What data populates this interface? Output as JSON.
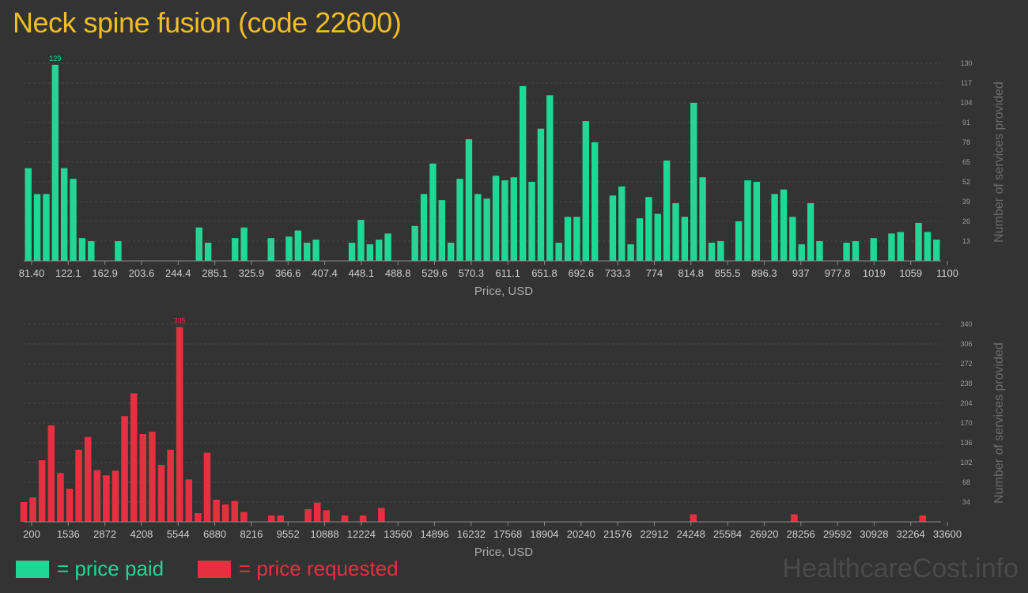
{
  "page": {
    "title": "Neck spine fusion (code 22600)",
    "watermark": "HealthcareCost.info"
  },
  "legend": [
    {
      "label": "= price paid",
      "color": "#21d696"
    },
    {
      "label": "= price requested",
      "color": "#e43040"
    }
  ],
  "chart_data": [
    {
      "type": "bar",
      "color": "#21d696",
      "xlabel": "Price, USD",
      "ylabel": "Number of services provided",
      "ylim": [
        0,
        130
      ],
      "x_ticks": [
        "81.40",
        "122.1",
        "162.9",
        "203.6",
        "244.4",
        "285.1",
        "325.9",
        "366.6",
        "407.4",
        "448.1",
        "488.8",
        "529.6",
        "570.3",
        "611.1",
        "651.8",
        "692.6",
        "733.3",
        "774",
        "814.8",
        "855.5",
        "896.3",
        "937",
        "977.8",
        "1019",
        "1059",
        "1100"
      ],
      "y_ticks": [
        13,
        26,
        39,
        52,
        65,
        78,
        91,
        104,
        117,
        130
      ],
      "peak_label": "129",
      "values": [
        61,
        44,
        44,
        129,
        61,
        54,
        15,
        13,
        0,
        0,
        13,
        0,
        0,
        0,
        0,
        0,
        0,
        0,
        0,
        22,
        12,
        0,
        0,
        15,
        22,
        0,
        0,
        15,
        0,
        16,
        20,
        12,
        14,
        0,
        0,
        0,
        12,
        27,
        11,
        14,
        18,
        0,
        0,
        23,
        44,
        64,
        40,
        12,
        54,
        80,
        44,
        41,
        56,
        53,
        55,
        115,
        52,
        87,
        109,
        12,
        29,
        29,
        92,
        78,
        0,
        43,
        49,
        11,
        28,
        42,
        31,
        66,
        38,
        29,
        104,
        55,
        12,
        13,
        0,
        26,
        53,
        52,
        0,
        44,
        47,
        29,
        11,
        38,
        13,
        0,
        0,
        12,
        13,
        0,
        15,
        0,
        18,
        19,
        0,
        25,
        19,
        14
      ],
      "x_domain": [
        81.4,
        1100
      ]
    },
    {
      "type": "bar",
      "color": "#e43040",
      "xlabel": "Price, USD",
      "ylabel": "Number of services provided",
      "ylim": [
        0,
        340
      ],
      "x_ticks": [
        "200",
        "1536",
        "2872",
        "4208",
        "5544",
        "6880",
        "8216",
        "9552",
        "10888",
        "12224",
        "13560",
        "14896",
        "16232",
        "17568",
        "18904",
        "20240",
        "21576",
        "22912",
        "24248",
        "25584",
        "26920",
        "28256",
        "29592",
        "30928",
        "32264",
        "33600"
      ],
      "y_ticks": [
        34,
        68,
        102,
        136,
        170,
        204,
        238,
        272,
        306,
        340
      ],
      "peak_label": "335",
      "bars": [
        {
          "x": 200,
          "v": 34
        },
        {
          "x": 534,
          "v": 42
        },
        {
          "x": 868,
          "v": 106
        },
        {
          "x": 1202,
          "v": 166
        },
        {
          "x": 1536,
          "v": 84
        },
        {
          "x": 1870,
          "v": 57
        },
        {
          "x": 2204,
          "v": 124
        },
        {
          "x": 2538,
          "v": 146
        },
        {
          "x": 2872,
          "v": 89
        },
        {
          "x": 3206,
          "v": 80
        },
        {
          "x": 3540,
          "v": 88
        },
        {
          "x": 3874,
          "v": 182
        },
        {
          "x": 4208,
          "v": 221
        },
        {
          "x": 4542,
          "v": 151
        },
        {
          "x": 4876,
          "v": 155
        },
        {
          "x": 5210,
          "v": 98
        },
        {
          "x": 5544,
          "v": 124
        },
        {
          "x": 5878,
          "v": 335
        },
        {
          "x": 6212,
          "v": 73
        },
        {
          "x": 6546,
          "v": 15
        },
        {
          "x": 6880,
          "v": 119
        },
        {
          "x": 7214,
          "v": 38
        },
        {
          "x": 7548,
          "v": 30
        },
        {
          "x": 7882,
          "v": 36
        },
        {
          "x": 8216,
          "v": 17
        },
        {
          "x": 9218,
          "v": 11
        },
        {
          "x": 9552,
          "v": 11
        },
        {
          "x": 10554,
          "v": 22
        },
        {
          "x": 10888,
          "v": 33
        },
        {
          "x": 11222,
          "v": 20
        },
        {
          "x": 11890,
          "v": 11
        },
        {
          "x": 12558,
          "v": 11
        },
        {
          "x": 13226,
          "v": 24
        },
        {
          "x": 24582,
          "v": 13
        },
        {
          "x": 28256,
          "v": 13
        },
        {
          "x": 32932,
          "v": 11
        }
      ],
      "x_domain": [
        200,
        33600
      ]
    }
  ]
}
